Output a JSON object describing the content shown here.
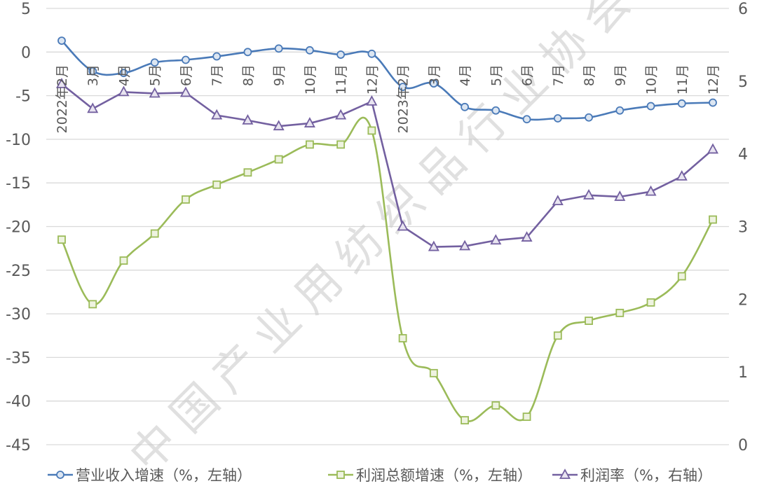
{
  "chart_data": {
    "type": "line",
    "title": "",
    "categories": [
      "2022年2月",
      "3月",
      "4月",
      "5月",
      "6月",
      "7月",
      "8月",
      "9月",
      "10月",
      "11月",
      "12月",
      "2023年2月",
      "3月",
      "4月",
      "5月",
      "6月",
      "7月",
      "8月",
      "9月",
      "10月",
      "11月",
      "12月"
    ],
    "series": [
      {
        "name": "营业收入增速（%，左轴）",
        "axis": "left",
        "color": "#4a7ab8",
        "marker": "circle",
        "smooth": true,
        "values": [
          1.3,
          -2.2,
          -2.4,
          -1.2,
          -0.9,
          -0.5,
          0.0,
          0.4,
          0.2,
          -0.3,
          -0.2,
          -4.0,
          -3.6,
          -6.3,
          -6.7,
          -7.7,
          -7.6,
          -7.5,
          -6.7,
          -6.2,
          -5.9,
          -5.8
        ]
      },
      {
        "name": "利润总额增速（%，左轴）",
        "axis": "left",
        "color": "#9bbb59",
        "marker": "square",
        "smooth": true,
        "values": [
          -21.5,
          -28.9,
          -23.9,
          -20.8,
          -16.9,
          -15.2,
          -13.8,
          -12.3,
          -10.6,
          -10.6,
          -9.0,
          -32.8,
          -36.8,
          -42.2,
          -40.5,
          -41.8,
          -32.5,
          -30.8,
          -29.9,
          -28.7,
          -25.7,
          -19.2
        ]
      },
      {
        "name": "利润率（%，右轴）",
        "axis": "right",
        "color": "#7360a0",
        "marker": "triangle",
        "smooth": false,
        "values": [
          4.96,
          4.62,
          4.85,
          4.83,
          4.84,
          4.53,
          4.46,
          4.38,
          4.42,
          4.53,
          4.72,
          3.0,
          2.72,
          2.73,
          2.81,
          2.85,
          3.35,
          3.43,
          3.41,
          3.48,
          3.69,
          4.06
        ]
      }
    ],
    "xlabel": "",
    "ylabel_left": "",
    "ylabel_right": "",
    "ylim_left": [
      -45,
      5
    ],
    "ylim_right": [
      0,
      6
    ],
    "yticks_left": [
      "5",
      "0",
      "-5",
      "-10",
      "-15",
      "-20",
      "-25",
      "-30",
      "-35",
      "-40",
      "-45"
    ],
    "yticks_right": [
      "6",
      "5",
      "4",
      "3",
      "2",
      "1",
      "0"
    ],
    "grid": true,
    "legend_position": "bottom"
  },
  "watermark": "中国产业用纺织品行业协会"
}
